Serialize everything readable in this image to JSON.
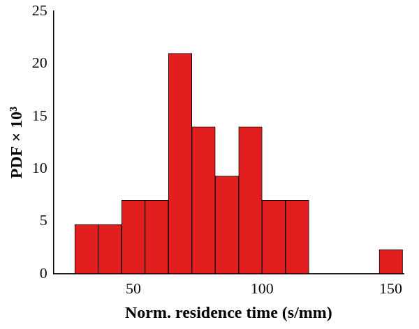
{
  "chart_data": {
    "type": "histogram",
    "x_label": "Norm. residence time (s/mm)",
    "y_label": "PDF × 10³",
    "bins": [
      27.2,
      36.3,
      45.4,
      54.5,
      63.6,
      72.7,
      81.8,
      90.9,
      100,
      109.1,
      118.2,
      127.3,
      136.4,
      145.5,
      154.6
    ],
    "values": [
      4.7,
      4.7,
      7,
      7,
      21,
      14,
      9.3,
      14,
      7,
      7,
      0,
      0,
      0,
      2.3
    ],
    "color": "#e31e1e",
    "xlim": [
      19,
      155
    ],
    "xticks": [
      50,
      100,
      150
    ],
    "ylim": [
      0,
      25
    ],
    "yticks": [
      0,
      5,
      10,
      15,
      20,
      25
    ],
    "grid": false
  }
}
